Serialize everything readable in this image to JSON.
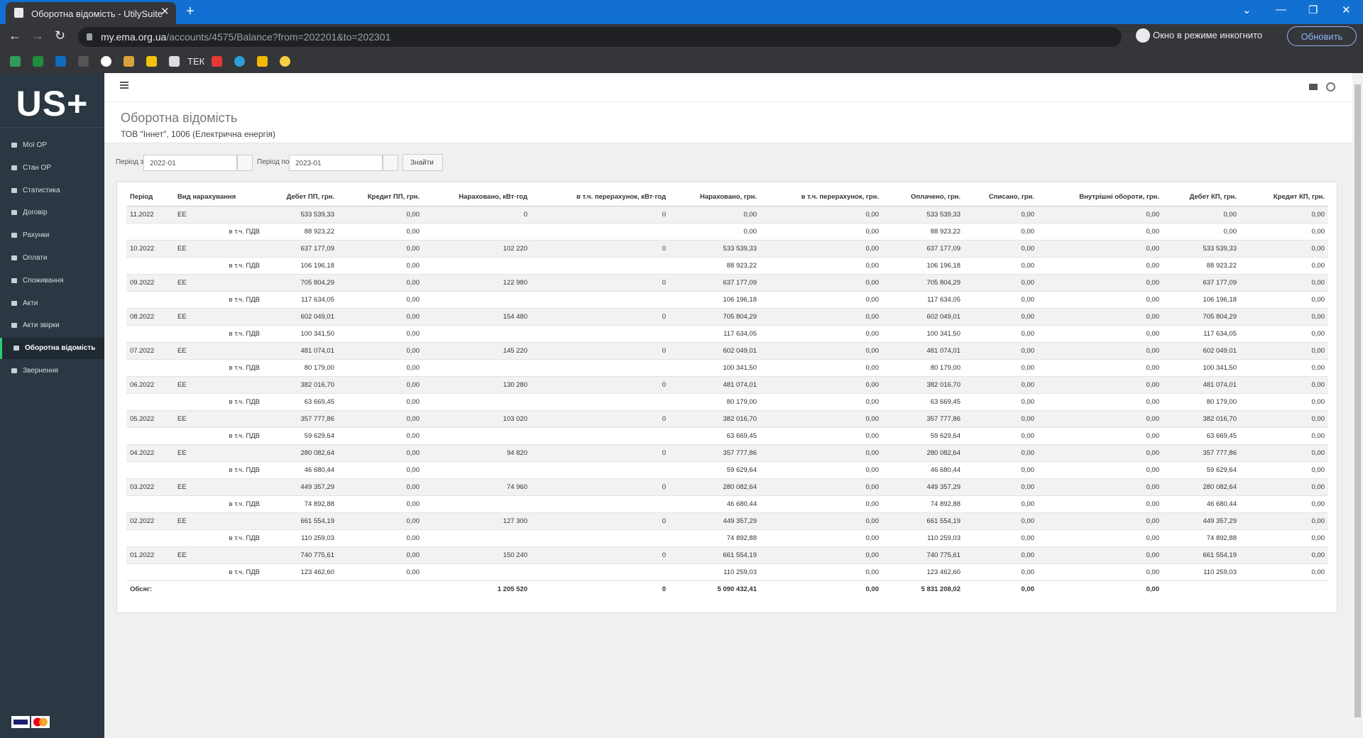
{
  "browser": {
    "tab_title": "Оборотна відомість - UtilySuite",
    "url_host": "my.ema.org.ua",
    "url_path": "/accounts/4575/Balance?from=202201&to=202301",
    "incognito": "Окно в режиме инкогнито",
    "update_button": "Обновить",
    "bookmark_text": "ТЕК"
  },
  "sidebar": {
    "logo": "US+",
    "menu": [
      "Мої ОР",
      "Стан ОР",
      "Статистика",
      "Договір",
      "Рахунки",
      "Оплати",
      "Споживання",
      "Акти",
      "Акти звірки",
      "Оборотна відомість",
      "Звернення"
    ],
    "active": 9
  },
  "page": {
    "title": "Оборотна відомість",
    "subtitle": "ТОВ \"Іннет\", 1006 (Електрична енергія)"
  },
  "filters": {
    "from_label": "Період з",
    "from_value": "2022-01",
    "to_label": "Період по",
    "to_value": "2023-01",
    "search_button": "Знайти"
  },
  "table": {
    "headers": [
      "Період",
      "Вид нарахування",
      "Дебет ПП, грн.",
      "Кредит ПП, грн.",
      "Нараховано, кВт·год",
      "в т.ч. перерахунок, кВт·год",
      "Нараховано, грн.",
      "в т.ч. перерахунок, грн.",
      "Оплачено, грн.",
      "Списано, грн.",
      "Внутрішні обороти, грн.",
      "Дебет КП, грн.",
      "Кредит КП, грн."
    ],
    "rows": [
      [
        "11.2022",
        "ЕЕ",
        "533 539,33",
        "0,00",
        "0",
        "0",
        "0,00",
        "0,00",
        "533 539,33",
        "0,00",
        "0,00",
        "0,00",
        "0,00"
      ],
      [
        null,
        "в т.ч. ПДВ",
        "88 923,22",
        "0,00",
        null,
        null,
        "0,00",
        "0,00",
        "88 923,22",
        "0,00",
        "0,00",
        "0,00",
        "0,00"
      ],
      [
        "10.2022",
        "ЕЕ",
        "637 177,09",
        "0,00",
        "102 220",
        "0",
        "533 539,33",
        "0,00",
        "637 177,09",
        "0,00",
        "0,00",
        "533 539,33",
        "0,00"
      ],
      [
        null,
        "в т.ч. ПДВ",
        "106 196,18",
        "0,00",
        null,
        null,
        "88 923,22",
        "0,00",
        "106 196,18",
        "0,00",
        "0,00",
        "88 923,22",
        "0,00"
      ],
      [
        "09.2022",
        "ЕЕ",
        "705 804,29",
        "0,00",
        "122 980",
        "0",
        "637 177,09",
        "0,00",
        "705 804,29",
        "0,00",
        "0,00",
        "637 177,09",
        "0,00"
      ],
      [
        null,
        "в т.ч. ПДВ",
        "117 634,05",
        "0,00",
        null,
        null,
        "106 196,18",
        "0,00",
        "117 634,05",
        "0,00",
        "0,00",
        "106 196,18",
        "0,00"
      ],
      [
        "08.2022",
        "ЕЕ",
        "602 049,01",
        "0,00",
        "154 480",
        "0",
        "705 804,29",
        "0,00",
        "602 049,01",
        "0,00",
        "0,00",
        "705 804,29",
        "0,00"
      ],
      [
        null,
        "в т.ч. ПДВ",
        "100 341,50",
        "0,00",
        null,
        null,
        "117 634,05",
        "0,00",
        "100 341,50",
        "0,00",
        "0,00",
        "117 634,05",
        "0,00"
      ],
      [
        "07.2022",
        "ЕЕ",
        "481 074,01",
        "0,00",
        "145 220",
        "0",
        "602 049,01",
        "0,00",
        "481 074,01",
        "0,00",
        "0,00",
        "602 049,01",
        "0,00"
      ],
      [
        null,
        "в т.ч. ПДВ",
        "80 179,00",
        "0,00",
        null,
        null,
        "100 341,50",
        "0,00",
        "80 179,00",
        "0,00",
        "0,00",
        "100 341,50",
        "0,00"
      ],
      [
        "06.2022",
        "ЕЕ",
        "382 016,70",
        "0,00",
        "130 280",
        "0",
        "481 074,01",
        "0,00",
        "382 016,70",
        "0,00",
        "0,00",
        "481 074,01",
        "0,00"
      ],
      [
        null,
        "в т.ч. ПДВ",
        "63 669,45",
        "0,00",
        null,
        null,
        "80 179,00",
        "0,00",
        "63 669,45",
        "0,00",
        "0,00",
        "80 179,00",
        "0,00"
      ],
      [
        "05.2022",
        "ЕЕ",
        "357 777,86",
        "0,00",
        "103 020",
        "0",
        "382 016,70",
        "0,00",
        "357 777,86",
        "0,00",
        "0,00",
        "382 016,70",
        "0,00"
      ],
      [
        null,
        "в т.ч. ПДВ",
        "59 629,64",
        "0,00",
        null,
        null,
        "63 669,45",
        "0,00",
        "59 629,64",
        "0,00",
        "0,00",
        "63 669,45",
        "0,00"
      ],
      [
        "04.2022",
        "ЕЕ",
        "280 082,64",
        "0,00",
        "94 820",
        "0",
        "357 777,86",
        "0,00",
        "280 082,64",
        "0,00",
        "0,00",
        "357 777,86",
        "0,00"
      ],
      [
        null,
        "в т.ч. ПДВ",
        "46 680,44",
        "0,00",
        null,
        null,
        "59 629,64",
        "0,00",
        "46 680,44",
        "0,00",
        "0,00",
        "59 629,64",
        "0,00"
      ],
      [
        "03.2022",
        "ЕЕ",
        "449 357,29",
        "0,00",
        "74 960",
        "0",
        "280 082,64",
        "0,00",
        "449 357,29",
        "0,00",
        "0,00",
        "280 082,64",
        "0,00"
      ],
      [
        null,
        "в т.ч. ПДВ",
        "74 892,88",
        "0,00",
        null,
        null,
        "46 680,44",
        "0,00",
        "74 892,88",
        "0,00",
        "0,00",
        "46 680,44",
        "0,00"
      ],
      [
        "02.2022",
        "ЕЕ",
        "661 554,19",
        "0,00",
        "127 300",
        "0",
        "449 357,29",
        "0,00",
        "661 554,19",
        "0,00",
        "0,00",
        "449 357,29",
        "0,00"
      ],
      [
        null,
        "в т.ч. ПДВ",
        "110 259,03",
        "0,00",
        null,
        null,
        "74 892,88",
        "0,00",
        "110 259,03",
        "0,00",
        "0,00",
        "74 892,88",
        "0,00"
      ],
      [
        "01.2022",
        "ЕЕ",
        "740 775,61",
        "0,00",
        "150 240",
        "0",
        "661 554,19",
        "0,00",
        "740 775,61",
        "0,00",
        "0,00",
        "661 554,19",
        "0,00"
      ],
      [
        null,
        "в т.ч. ПДВ",
        "123 462,60",
        "0,00",
        null,
        null,
        "110 259,03",
        "0,00",
        "123 462,60",
        "0,00",
        "0,00",
        "110 259,03",
        "0,00"
      ]
    ],
    "totals": [
      "Обсяг:",
      null,
      null,
      null,
      "1 205 520",
      "0",
      "5 090 432,41",
      "0,00",
      "5 831 208,02",
      "0,00",
      "0,00",
      null,
      null
    ]
  }
}
